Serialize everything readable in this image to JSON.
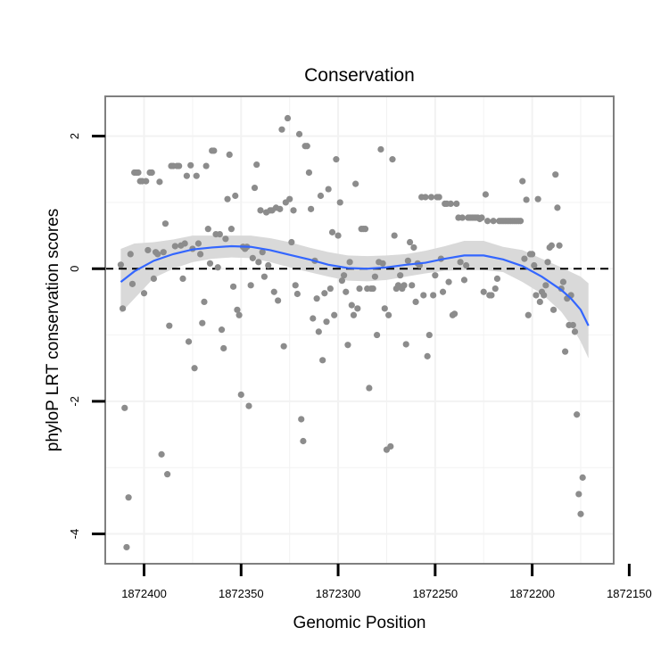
{
  "chart_data": {
    "type": "scatter",
    "title": "Conservation",
    "xlabel": "Genomic Position",
    "ylabel": "phyloP LRT conservation scores",
    "x_reversed": true,
    "xlim": [
      1872158,
      1872420
    ],
    "ylim": [
      -4.45,
      2.6
    ],
    "x_ticks": [
      1872400,
      1872350,
      1872300,
      1872250,
      1872200,
      1872150
    ],
    "x_tick_labels": [
      "1872400",
      "1872350",
      "1872300",
      "1872250",
      "1872200",
      "1872150"
    ],
    "y_ticks": [
      2,
      0,
      -2,
      -4
    ],
    "y_tick_labels": [
      "2",
      "0",
      "-2",
      "-4"
    ],
    "reference_line_y": 0,
    "colors": {
      "points": "#8c8c8c",
      "smooth": "#3366ff",
      "band": "#d9d9d9",
      "grid": "#f2f2f2",
      "frame": "#7f7f7f"
    },
    "points": [
      [
        1872412,
        0.06
      ],
      [
        1872411,
        -0.6
      ],
      [
        1872410,
        -2.1
      ],
      [
        1872409,
        -4.2
      ],
      [
        1872408,
        -3.45
      ],
      [
        1872407,
        0.22
      ],
      [
        1872406,
        -0.23
      ],
      [
        1872405,
        1.45
      ],
      [
        1872404,
        1.45
      ],
      [
        1872403,
        1.45
      ],
      [
        1872402,
        1.32
      ],
      [
        1872401,
        1.32
      ],
      [
        1872400,
        -0.37
      ],
      [
        1872399,
        1.32
      ],
      [
        1872398,
        0.28
      ],
      [
        1872397,
        1.45
      ],
      [
        1872396,
        1.45
      ],
      [
        1872395,
        -0.15
      ],
      [
        1872394,
        0.25
      ],
      [
        1872393,
        0.22
      ],
      [
        1872392,
        1.31
      ],
      [
        1872391,
        -2.8
      ],
      [
        1872390,
        0.25
      ],
      [
        1872389,
        0.68
      ],
      [
        1872388,
        -3.1
      ],
      [
        1872387,
        -0.86
      ],
      [
        1872386,
        1.55
      ],
      [
        1872385,
        1.55
      ],
      [
        1872384,
        0.34
      ],
      [
        1872383,
        1.55
      ],
      [
        1872382,
        1.55
      ],
      [
        1872381,
        0.35
      ],
      [
        1872380,
        -0.15
      ],
      [
        1872379,
        0.38
      ],
      [
        1872378,
        1.4
      ],
      [
        1872377,
        -1.1
      ],
      [
        1872376,
        1.56
      ],
      [
        1872375,
        0.3
      ],
      [
        1872374,
        -1.5
      ],
      [
        1872373,
        1.4
      ],
      [
        1872372,
        0.38
      ],
      [
        1872371,
        0.22
      ],
      [
        1872370,
        -0.82
      ],
      [
        1872369,
        -0.5
      ],
      [
        1872368,
        1.55
      ],
      [
        1872367,
        0.6
      ],
      [
        1872366,
        0.08
      ],
      [
        1872365,
        1.78
      ],
      [
        1872364,
        1.78
      ],
      [
        1872363,
        0.52
      ],
      [
        1872362,
        0.02
      ],
      [
        1872361,
        0.52
      ],
      [
        1872360,
        -0.92
      ],
      [
        1872359,
        -1.2
      ],
      [
        1872358,
        0.45
      ],
      [
        1872357,
        1.05
      ],
      [
        1872356,
        1.72
      ],
      [
        1872355,
        0.6
      ],
      [
        1872354,
        -0.27
      ],
      [
        1872353,
        1.1
      ],
      [
        1872352,
        -0.62
      ],
      [
        1872351,
        -0.7
      ],
      [
        1872350,
        -1.9
      ],
      [
        1872349,
        0.33
      ],
      [
        1872348,
        0.3
      ],
      [
        1872347,
        0.33
      ],
      [
        1872346,
        -2.07
      ],
      [
        1872345,
        -0.25
      ],
      [
        1872344,
        0.16
      ],
      [
        1872343,
        1.22
      ],
      [
        1872342,
        1.57
      ],
      [
        1872341,
        0.1
      ],
      [
        1872340,
        0.88
      ],
      [
        1872339,
        0.25
      ],
      [
        1872338,
        -0.12
      ],
      [
        1872337,
        0.85
      ],
      [
        1872336,
        0.05
      ],
      [
        1872335,
        0.88
      ],
      [
        1872334,
        0.88
      ],
      [
        1872333,
        -0.35
      ],
      [
        1872332,
        0.92
      ],
      [
        1872331,
        -0.48
      ],
      [
        1872330,
        0.9
      ],
      [
        1872329,
        2.1
      ],
      [
        1872328,
        -1.17
      ],
      [
        1872327,
        1.0
      ],
      [
        1872326,
        2.27
      ],
      [
        1872325,
        1.05
      ],
      [
        1872324,
        0.4
      ],
      [
        1872323,
        0.88
      ],
      [
        1872322,
        -0.25
      ],
      [
        1872321,
        -0.38
      ],
      [
        1872320,
        2.03
      ],
      [
        1872319,
        -2.27
      ],
      [
        1872318,
        -2.6
      ],
      [
        1872317,
        1.85
      ],
      [
        1872316,
        1.85
      ],
      [
        1872315,
        1.45
      ],
      [
        1872314,
        0.9
      ],
      [
        1872313,
        -0.75
      ],
      [
        1872312,
        0.12
      ],
      [
        1872311,
        -0.45
      ],
      [
        1872310,
        -0.95
      ],
      [
        1872309,
        1.1
      ],
      [
        1872308,
        -1.38
      ],
      [
        1872307,
        -0.37
      ],
      [
        1872306,
        -0.8
      ],
      [
        1872305,
        1.2
      ],
      [
        1872304,
        -0.3
      ],
      [
        1872303,
        0.55
      ],
      [
        1872302,
        -0.7
      ],
      [
        1872301,
        1.65
      ],
      [
        1872300,
        0.5
      ],
      [
        1872299,
        1.0
      ],
      [
        1872298,
        -0.18
      ],
      [
        1872297,
        -0.1
      ],
      [
        1872296,
        -0.35
      ],
      [
        1872295,
        -1.15
      ],
      [
        1872294,
        0.1
      ],
      [
        1872293,
        -0.55
      ],
      [
        1872292,
        -0.7
      ],
      [
        1872291,
        1.28
      ],
      [
        1872290,
        -0.6
      ],
      [
        1872289,
        -0.3
      ],
      [
        1872288,
        0.6
      ],
      [
        1872287,
        0.6
      ],
      [
        1872286,
        0.6
      ],
      [
        1872285,
        -0.3
      ],
      [
        1872284,
        -1.8
      ],
      [
        1872283,
        -0.3
      ],
      [
        1872282,
        -0.3
      ],
      [
        1872281,
        -0.12
      ],
      [
        1872280,
        -1.0
      ],
      [
        1872279,
        0.1
      ],
      [
        1872278,
        1.8
      ],
      [
        1872277,
        0.08
      ],
      [
        1872276,
        -0.6
      ],
      [
        1872275,
        -2.73
      ],
      [
        1872274,
        -0.7
      ],
      [
        1872273,
        -2.68
      ],
      [
        1872272,
        1.65
      ],
      [
        1872271,
        0.5
      ],
      [
        1872270,
        -0.3
      ],
      [
        1872269,
        -0.25
      ],
      [
        1872268,
        -0.1
      ],
      [
        1872267,
        -0.3
      ],
      [
        1872266,
        -0.25
      ],
      [
        1872265,
        -1.14
      ],
      [
        1872264,
        0.12
      ],
      [
        1872263,
        0.4
      ],
      [
        1872262,
        -0.25
      ],
      [
        1872261,
        0.32
      ],
      [
        1872260,
        -0.5
      ],
      [
        1872259,
        0.08
      ],
      [
        1872258,
        0.05
      ],
      [
        1872257,
        1.08
      ],
      [
        1872256,
        -0.4
      ],
      [
        1872255,
        1.08
      ],
      [
        1872254,
        -1.32
      ],
      [
        1872253,
        -1.0
      ],
      [
        1872252,
        1.08
      ],
      [
        1872251,
        -0.4
      ],
      [
        1872250,
        -0.1
      ],
      [
        1872249,
        1.08
      ],
      [
        1872248,
        1.08
      ],
      [
        1872247,
        0.15
      ],
      [
        1872246,
        -0.35
      ],
      [
        1872245,
        0.98
      ],
      [
        1872244,
        0.98
      ],
      [
        1872243,
        -0.2
      ],
      [
        1872242,
        0.98
      ],
      [
        1872241,
        -0.7
      ],
      [
        1872240,
        -0.68
      ],
      [
        1872239,
        0.98
      ],
      [
        1872238,
        0.77
      ],
      [
        1872237,
        0.1
      ],
      [
        1872236,
        0.77
      ],
      [
        1872235,
        -0.17
      ],
      [
        1872234,
        0.05
      ],
      [
        1872233,
        0.77
      ],
      [
        1872232,
        0.77
      ],
      [
        1872231,
        0.77
      ],
      [
        1872230,
        0.77
      ],
      [
        1872229,
        0.77
      ],
      [
        1872228,
        0.77
      ],
      [
        1872227,
        0.75
      ],
      [
        1872226,
        0.77
      ],
      [
        1872225,
        -0.35
      ],
      [
        1872224,
        1.12
      ],
      [
        1872223,
        0.72
      ],
      [
        1872222,
        -0.4
      ],
      [
        1872221,
        -0.4
      ],
      [
        1872220,
        0.72
      ],
      [
        1872219,
        -0.3
      ],
      [
        1872218,
        -0.15
      ],
      [
        1872217,
        0.72
      ],
      [
        1872216,
        0.72
      ],
      [
        1872215,
        0.72
      ],
      [
        1872214,
        0.72
      ],
      [
        1872213,
        0.72
      ],
      [
        1872212,
        0.72
      ],
      [
        1872211,
        0.72
      ],
      [
        1872210,
        0.72
      ],
      [
        1872209,
        0.72
      ],
      [
        1872208,
        0.72
      ],
      [
        1872207,
        0.72
      ],
      [
        1872206,
        0.72
      ],
      [
        1872205,
        1.32
      ],
      [
        1872204,
        0.15
      ],
      [
        1872203,
        1.04
      ],
      [
        1872202,
        -0.7
      ],
      [
        1872201,
        0.22
      ],
      [
        1872200,
        0.22
      ],
      [
        1872199,
        0.05
      ],
      [
        1872198,
        -0.4
      ],
      [
        1872197,
        1.05
      ],
      [
        1872196,
        -0.5
      ],
      [
        1872195,
        -0.35
      ],
      [
        1872194,
        -0.4
      ],
      [
        1872193,
        -0.25
      ],
      [
        1872192,
        0.1
      ],
      [
        1872191,
        0.32
      ],
      [
        1872190,
        0.35
      ],
      [
        1872189,
        -0.62
      ],
      [
        1872188,
        1.42
      ],
      [
        1872187,
        0.92
      ],
      [
        1872186,
        0.35
      ],
      [
        1872185,
        -0.3
      ],
      [
        1872184,
        -0.2
      ],
      [
        1872183,
        -1.25
      ],
      [
        1872182,
        -0.45
      ],
      [
        1872181,
        -0.85
      ],
      [
        1872180,
        -0.4
      ],
      [
        1872179,
        -0.85
      ],
      [
        1872178,
        -0.95
      ],
      [
        1872177,
        -2.2
      ],
      [
        1872176,
        -3.4
      ],
      [
        1872175,
        -3.7
      ],
      [
        1872174,
        -3.15
      ]
    ],
    "smooth_line": [
      [
        1872412,
        -0.2
      ],
      [
        1872405,
        -0.04
      ],
      [
        1872395,
        0.12
      ],
      [
        1872385,
        0.22
      ],
      [
        1872375,
        0.29
      ],
      [
        1872365,
        0.32
      ],
      [
        1872355,
        0.34
      ],
      [
        1872345,
        0.33
      ],
      [
        1872335,
        0.28
      ],
      [
        1872325,
        0.21
      ],
      [
        1872315,
        0.14
      ],
      [
        1872305,
        0.06
      ],
      [
        1872295,
        0.01
      ],
      [
        1872285,
        0.0
      ],
      [
        1872275,
        0.02
      ],
      [
        1872265,
        0.06
      ],
      [
        1872255,
        0.09
      ],
      [
        1872245,
        0.15
      ],
      [
        1872235,
        0.2
      ],
      [
        1872225,
        0.2
      ],
      [
        1872215,
        0.14
      ],
      [
        1872205,
        0.04
      ],
      [
        1872195,
        -0.12
      ],
      [
        1872185,
        -0.32
      ],
      [
        1872180,
        -0.45
      ],
      [
        1872175,
        -0.62
      ],
      [
        1872171,
        -0.86
      ]
    ],
    "band_upper": [
      [
        1872412,
        0.3
      ],
      [
        1872405,
        0.38
      ],
      [
        1872395,
        0.4
      ],
      [
        1872385,
        0.44
      ],
      [
        1872375,
        0.5
      ],
      [
        1872365,
        0.5
      ],
      [
        1872355,
        0.5
      ],
      [
        1872345,
        0.5
      ],
      [
        1872335,
        0.46
      ],
      [
        1872325,
        0.4
      ],
      [
        1872315,
        0.32
      ],
      [
        1872305,
        0.25
      ],
      [
        1872295,
        0.2
      ],
      [
        1872285,
        0.19
      ],
      [
        1872275,
        0.2
      ],
      [
        1872265,
        0.22
      ],
      [
        1872255,
        0.27
      ],
      [
        1872245,
        0.34
      ],
      [
        1872235,
        0.42
      ],
      [
        1872225,
        0.42
      ],
      [
        1872215,
        0.33
      ],
      [
        1872205,
        0.28
      ],
      [
        1872195,
        0.15
      ],
      [
        1872185,
        0.02
      ],
      [
        1872180,
        -0.05
      ],
      [
        1872175,
        -0.12
      ],
      [
        1872171,
        -0.22
      ]
    ],
    "band_lower": [
      [
        1872412,
        -0.67
      ],
      [
        1872405,
        -0.45
      ],
      [
        1872395,
        -0.14
      ],
      [
        1872385,
        0.0
      ],
      [
        1872375,
        0.1
      ],
      [
        1872365,
        0.15
      ],
      [
        1872355,
        0.17
      ],
      [
        1872345,
        0.16
      ],
      [
        1872335,
        0.1
      ],
      [
        1872325,
        0.02
      ],
      [
        1872315,
        -0.05
      ],
      [
        1872305,
        -0.12
      ],
      [
        1872295,
        -0.18
      ],
      [
        1872285,
        -0.19
      ],
      [
        1872275,
        -0.17
      ],
      [
        1872265,
        -0.12
      ],
      [
        1872255,
        -0.07
      ],
      [
        1872245,
        -0.03
      ],
      [
        1872235,
        -0.02
      ],
      [
        1872225,
        -0.02
      ],
      [
        1872215,
        -0.05
      ],
      [
        1872205,
        -0.2
      ],
      [
        1872195,
        -0.38
      ],
      [
        1872185,
        -0.65
      ],
      [
        1872180,
        -0.85
      ],
      [
        1872175,
        -1.1
      ],
      [
        1872171,
        -1.35
      ]
    ]
  }
}
